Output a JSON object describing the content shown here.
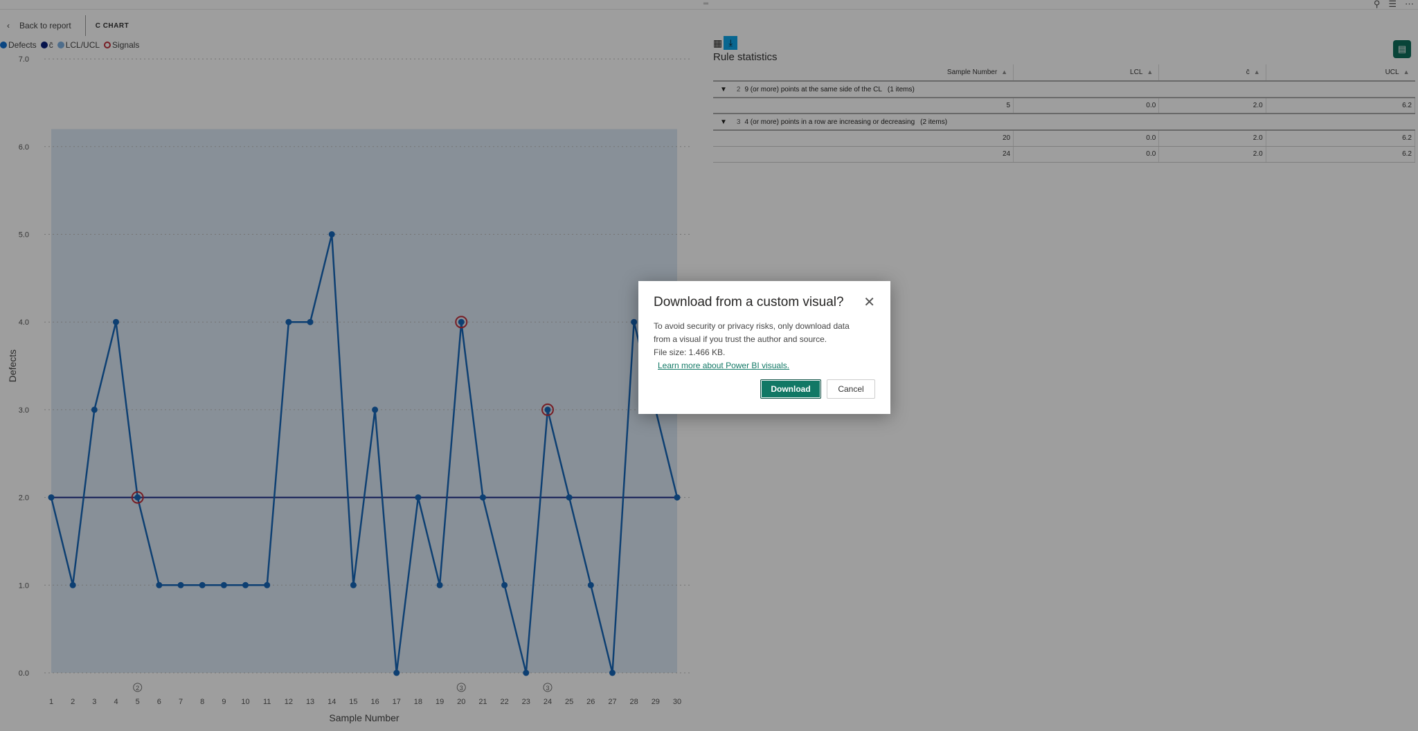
{
  "header": {
    "back_label": "Back to report",
    "title": "C CHART"
  },
  "topbar": {
    "drag_icon": "drag-handle",
    "icons": [
      "pin-icon",
      "filter-icon",
      "more-icon"
    ]
  },
  "legend": [
    {
      "label": "Defects",
      "color": "#1170d0",
      "type": "dot"
    },
    {
      "label": "c̄",
      "color": "#0b1f7a",
      "type": "dot"
    },
    {
      "label": "LCL/UCL",
      "color": "#7fb0e0",
      "type": "dot"
    },
    {
      "label": "Signals",
      "color": "#c0303a",
      "type": "ring"
    }
  ],
  "chart_data": {
    "type": "line",
    "xlabel": "Sample Number",
    "ylabel": "Defects",
    "ylim": [
      0,
      7
    ],
    "yticks": [
      "0.0",
      "1.0",
      "2.0",
      "3.0",
      "4.0",
      "5.0",
      "6.0",
      "7.0"
    ],
    "x": [
      1,
      2,
      3,
      4,
      5,
      6,
      7,
      8,
      9,
      10,
      11,
      12,
      13,
      14,
      15,
      16,
      17,
      18,
      19,
      20,
      21,
      22,
      23,
      24,
      25,
      26,
      27,
      28,
      29,
      30
    ],
    "series": [
      {
        "name": "Defects",
        "values": [
          2,
          1,
          3,
          4,
          2,
          1,
          1,
          1,
          1,
          1,
          1,
          4,
          4,
          5,
          1,
          3,
          0,
          2,
          1,
          4,
          2,
          1,
          0,
          3,
          2,
          1,
          0,
          4,
          3,
          2
        ],
        "color": "#1667b8"
      }
    ],
    "center_line": 2.0,
    "lcl": 0.0,
    "ucl": 6.2,
    "signals": [
      {
        "x": 5,
        "rule": "2"
      },
      {
        "x": 20,
        "rule": "3"
      },
      {
        "x": 24,
        "rule": "3"
      }
    ],
    "colors": {
      "band": "#dce8f5",
      "center": "#1a2a8a",
      "signal": "#c0303a"
    },
    "grid": true
  },
  "rule_stats": {
    "title": "Rule statistics",
    "icons": [
      "table-icon",
      "download-icon"
    ],
    "columns": [
      "Sample Number",
      "LCL",
      "c̄",
      "UCL"
    ],
    "groups": [
      {
        "rule": "2",
        "label": "9 (or more) points at the same side of the CL",
        "count": "(1 items)",
        "rows": [
          [
            "5",
            "0.0",
            "2.0",
            "6.2"
          ]
        ]
      },
      {
        "rule": "3",
        "label": "4 (or more) points in a row are increasing or decreasing",
        "count": "(2 items)",
        "rows": [
          [
            "20",
            "0.0",
            "2.0",
            "6.2"
          ],
          [
            "24",
            "0.0",
            "2.0",
            "6.2"
          ]
        ]
      }
    ]
  },
  "dialog": {
    "title": "Download from a custom visual?",
    "line1": "To avoid security or privacy risks, only download data",
    "line2": "from a visual if you trust the author and source.",
    "file_size": "File size: 1.466 KB.",
    "link": "Learn more about Power BI visuals.",
    "download": "Download",
    "cancel": "Cancel"
  }
}
